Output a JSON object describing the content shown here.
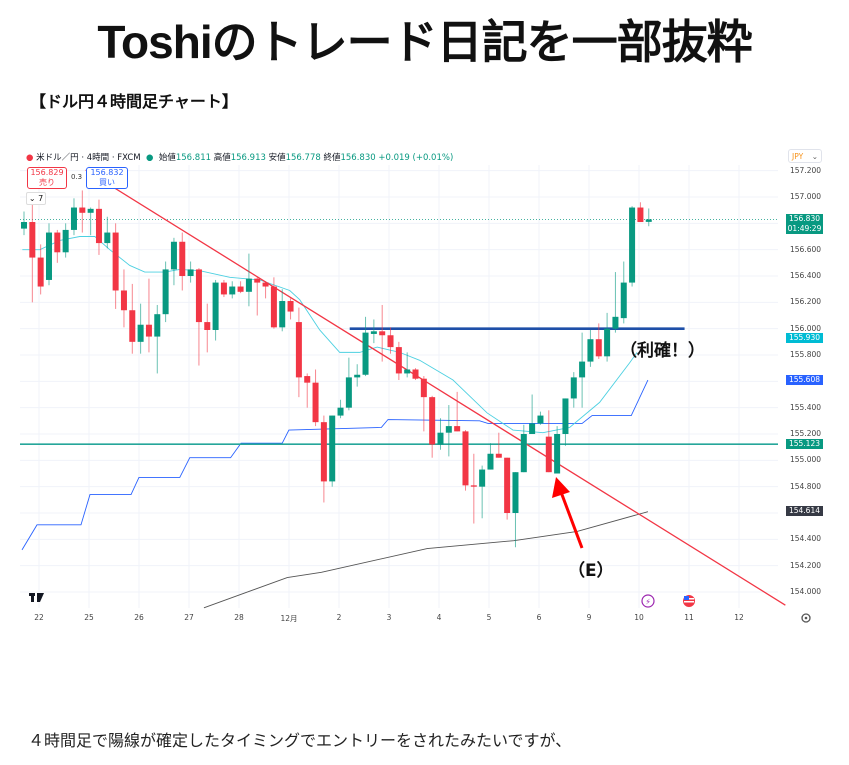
{
  "page": {
    "title": "Toshiのトレード日記を一部抜粋",
    "subtitle": "【ドル円４時間足チャート】",
    "body_text": "４時間足で陽線が確定したタイミングでエントリーをされたみたいですが、"
  },
  "chart_header": {
    "symbol": "米ドル／円 · 4時間 · FXCM",
    "open_label": "始値",
    "open": "156.811",
    "high_label": "高値",
    "high": "156.913",
    "low_label": "安値",
    "low": "156.778",
    "close_label": "終値",
    "close": "156.830",
    "change": "+0.019 (+0.01%)",
    "sell_price": "156.829",
    "sell_label": "売り",
    "spread": "0.3",
    "buy_price": "156.832",
    "buy_label": "買い",
    "indicators_count": "7",
    "currency": "JPY"
  },
  "annotations": {
    "take_profit": "（利確！）",
    "entry": "（E）"
  },
  "colors": {
    "up": "#089981",
    "down": "#f23645",
    "trendline": "#f23645",
    "resistance": "#1e4fa8",
    "support": "#26a69a",
    "ma_fast": "#4dd0e1",
    "ma_step": "#2962ff",
    "ma_slow": "#555555",
    "arrow": "#ff0000"
  },
  "chart_data": {
    "type": "candlestick",
    "title": "米ドル／円 · 4時間 · FXCM",
    "ylabel": "JPY",
    "ylim": [
      153.85,
      157.25
    ],
    "y_ticks": [
      "157.200",
      "157.000",
      "156.600",
      "156.400",
      "156.200",
      "156.000",
      "155.800",
      "155.400",
      "155.200",
      "155.000",
      "154.800",
      "154.400",
      "154.200",
      "154.000"
    ],
    "x_labels": [
      "22",
      "25",
      "26",
      "27",
      "28",
      "12月",
      "2",
      "3",
      "4",
      "5",
      "6",
      "9",
      "10",
      "11",
      "12"
    ],
    "candles_ohlc": [
      [
        156.76,
        156.89,
        156.71,
        156.81
      ],
      [
        156.81,
        156.95,
        156.2,
        156.54
      ],
      [
        156.54,
        156.64,
        156.26,
        156.32
      ],
      [
        156.37,
        156.8,
        156.33,
        156.73
      ],
      [
        156.73,
        156.75,
        156.5,
        156.58
      ],
      [
        156.58,
        156.8,
        156.54,
        156.75
      ],
      [
        156.75,
        156.99,
        156.71,
        156.92
      ],
      [
        156.92,
        157.05,
        156.73,
        156.88
      ],
      [
        156.88,
        156.92,
        156.71,
        156.91
      ],
      [
        156.91,
        156.98,
        156.56,
        156.65
      ],
      [
        156.65,
        156.85,
        156.61,
        156.73
      ],
      [
        156.73,
        156.8,
        156.15,
        156.29
      ],
      [
        156.29,
        156.45,
        156.01,
        156.14
      ],
      [
        156.14,
        156.34,
        155.81,
        155.9
      ],
      [
        155.9,
        156.19,
        155.81,
        156.03
      ],
      [
        156.03,
        156.38,
        155.82,
        155.94
      ],
      [
        155.94,
        156.18,
        155.66,
        156.11
      ],
      [
        156.11,
        156.51,
        156.05,
        156.45
      ],
      [
        156.45,
        156.69,
        156.33,
        156.66
      ],
      [
        156.66,
        156.73,
        156.29,
        156.4
      ],
      [
        156.4,
        156.51,
        156.35,
        156.45
      ],
      [
        156.45,
        156.46,
        155.72,
        156.05
      ],
      [
        156.05,
        156.19,
        155.82,
        155.99
      ],
      [
        155.99,
        156.37,
        155.91,
        156.35
      ],
      [
        156.35,
        156.37,
        156.24,
        156.26
      ],
      [
        156.26,
        156.36,
        156.23,
        156.32
      ],
      [
        156.32,
        156.36,
        156.27,
        156.28
      ],
      [
        156.28,
        156.57,
        156.17,
        156.38
      ],
      [
        156.38,
        156.39,
        156.1,
        156.35
      ],
      [
        156.35,
        156.36,
        156.23,
        156.32
      ],
      [
        156.32,
        156.39,
        156.0,
        156.01
      ],
      [
        156.01,
        156.3,
        155.98,
        156.21
      ],
      [
        156.21,
        156.23,
        156.07,
        156.13
      ],
      [
        156.05,
        156.16,
        155.48,
        155.63
      ],
      [
        155.64,
        155.66,
        155.4,
        155.59
      ],
      [
        155.59,
        155.69,
        155.26,
        155.29
      ],
      [
        155.29,
        155.34,
        154.68,
        154.84
      ],
      [
        154.84,
        155.34,
        154.8,
        155.34
      ],
      [
        155.34,
        155.46,
        155.32,
        155.4
      ],
      [
        155.4,
        155.78,
        155.38,
        155.63
      ],
      [
        155.63,
        155.73,
        155.56,
        155.65
      ],
      [
        155.65,
        156.09,
        155.64,
        155.97
      ],
      [
        155.96,
        156.07,
        155.89,
        155.98
      ],
      [
        155.98,
        156.18,
        155.75,
        155.95
      ],
      [
        155.95,
        156.01,
        155.81,
        155.86
      ],
      [
        155.86,
        155.9,
        155.61,
        155.66
      ],
      [
        155.66,
        155.82,
        155.63,
        155.69
      ],
      [
        155.69,
        155.7,
        155.61,
        155.62
      ],
      [
        155.62,
        155.64,
        155.22,
        155.48
      ],
      [
        155.48,
        155.49,
        155.02,
        155.12
      ],
      [
        155.12,
        155.32,
        155.08,
        155.21
      ],
      [
        155.21,
        155.42,
        155.03,
        155.26
      ],
      [
        155.26,
        155.52,
        155.22,
        155.22
      ],
      [
        155.22,
        155.23,
        154.77,
        154.81
      ],
      [
        154.81,
        155.05,
        154.52,
        154.8
      ],
      [
        154.8,
        154.96,
        154.56,
        154.93
      ],
      [
        154.93,
        155.13,
        154.93,
        155.05
      ],
      [
        155.05,
        155.21,
        155.02,
        155.02
      ],
      [
        155.02,
        155.02,
        154.55,
        154.6
      ],
      [
        154.6,
        154.91,
        154.34,
        154.91
      ],
      [
        154.91,
        155.27,
        154.91,
        155.2
      ],
      [
        155.2,
        155.5,
        155.2,
        155.28
      ],
      [
        155.28,
        155.37,
        155.27,
        155.34
      ],
      [
        155.18,
        155.38,
        154.91,
        154.91
      ],
      [
        154.9,
        155.26,
        154.9,
        155.2
      ],
      [
        155.2,
        155.47,
        155.11,
        155.47
      ],
      [
        155.47,
        155.67,
        155.4,
        155.63
      ],
      [
        155.63,
        155.97,
        155.4,
        155.75
      ],
      [
        155.75,
        155.99,
        155.71,
        155.92
      ],
      [
        155.92,
        156.04,
        155.77,
        155.79
      ],
      [
        155.79,
        156.12,
        155.75,
        156.0
      ],
      [
        156.0,
        156.43,
        155.97,
        156.09
      ],
      [
        156.08,
        156.51,
        156.04,
        156.35
      ],
      [
        156.35,
        156.93,
        156.32,
        156.92
      ],
      [
        156.92,
        156.96,
        156.81,
        156.81
      ],
      [
        156.811,
        156.913,
        156.778,
        156.83
      ]
    ],
    "entry_candle_index": 64,
    "ma_fast": [
      [
        -0.2,
        156.6
      ],
      [
        1.9,
        156.6
      ],
      [
        4.3,
        156.67
      ],
      [
        6.7,
        156.7
      ],
      [
        8.5,
        156.7
      ],
      [
        10.3,
        156.6
      ],
      [
        12.7,
        156.48
      ],
      [
        14.5,
        156.43
      ],
      [
        16.9,
        156.43
      ],
      [
        18.7,
        156.45
      ],
      [
        21.1,
        156.44
      ],
      [
        24.7,
        156.39
      ],
      [
        28.3,
        156.37
      ],
      [
        31.9,
        156.29
      ],
      [
        33.1,
        156.22
      ],
      [
        35.5,
        155.99
      ],
      [
        37.9,
        155.82
      ],
      [
        40.3,
        155.82
      ],
      [
        42.4,
        155.86
      ],
      [
        45.1,
        155.82
      ],
      [
        47.5,
        155.76
      ],
      [
        51.5,
        155.61
      ],
      [
        55.6,
        155.36
      ],
      [
        58.7,
        155.23
      ],
      [
        62.3,
        155.21
      ],
      [
        65.5,
        155.25
      ],
      [
        69.1,
        155.44
      ],
      [
        72.7,
        155.74
      ],
      [
        73.6,
        155.82
      ]
    ],
    "ma_step": [
      [
        -0.24,
        154.32
      ],
      [
        1.56,
        154.51
      ],
      [
        6.84,
        154.51
      ],
      [
        7.92,
        154.74
      ],
      [
        12.85,
        154.74
      ],
      [
        13.8,
        154.87
      ],
      [
        18.7,
        154.87
      ],
      [
        19.9,
        155.02
      ],
      [
        24.8,
        155.02
      ],
      [
        26.05,
        155.13
      ],
      [
        31.0,
        155.13
      ],
      [
        31.8,
        155.23
      ],
      [
        42.9,
        155.25
      ],
      [
        43.7,
        155.31
      ],
      [
        54.7,
        155.3
      ],
      [
        55.7,
        155.28
      ],
      [
        67.0,
        155.28
      ],
      [
        68.2,
        155.34
      ],
      [
        72.9,
        155.34
      ],
      [
        74.9,
        155.61
      ]
    ],
    "ma_slow": [
      [
        21.6,
        153.88
      ],
      [
        31.6,
        154.11
      ],
      [
        35.7,
        154.15
      ],
      [
        48.4,
        154.33
      ],
      [
        58.8,
        154.39
      ],
      [
        66.4,
        154.46
      ],
      [
        74.9,
        154.61
      ]
    ],
    "trendline": [
      [
        7.4,
        157.205
      ],
      [
        91.4,
        153.9
      ]
    ],
    "resistance_line": {
      "price": 156.0,
      "from_index": 39.1,
      "to_index": 79.3
    },
    "support_line": {
      "price": 155.123
    },
    "price_labels": [
      {
        "text": "156.830",
        "sub": "01:49:29",
        "price": 156.83,
        "color": "#089981"
      },
      {
        "text": "155.930",
        "price": 155.93,
        "color": "#00bcd4"
      },
      {
        "text": "155.608",
        "price": 155.608,
        "color": "#2962ff"
      },
      {
        "text": "155.123",
        "price": 155.123,
        "color": "#089981"
      },
      {
        "text": "154.614",
        "price": 154.614,
        "color": "#363a45"
      }
    ]
  }
}
